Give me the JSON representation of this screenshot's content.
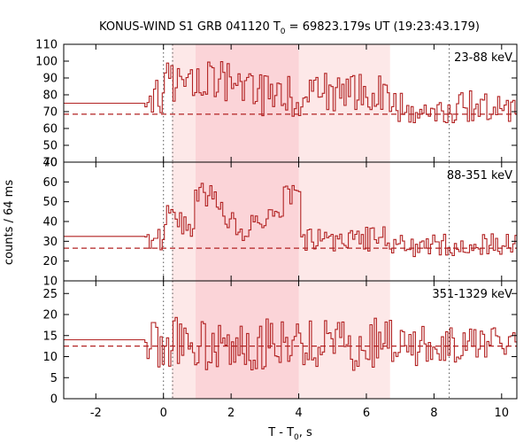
{
  "chart_data": {
    "type": "line",
    "title": {
      "prefix": "KONUS-WIND S1 GRB 041120 T",
      "sub": "0",
      "suffix": " = 69823.179s UT (19:23:43.179)"
    },
    "xlabel": {
      "prefix": "T - T",
      "sub": "0",
      "suffix": ", s"
    },
    "ylabel": "counts / 64 ms",
    "xlim": [
      -2.95,
      10.45
    ],
    "xticks": [
      -2,
      0,
      2,
      4,
      6,
      8,
      10
    ],
    "bin_width_s": 0.064,
    "shaded_intervals": [
      {
        "x0": 0.25,
        "x1": 6.7,
        "style": "light"
      },
      {
        "x0": 0.95,
        "x1": 4.0,
        "style": "dark"
      }
    ],
    "marker_lines_x": [
      0.0,
      0.27,
      8.45
    ],
    "line_color": "#b22222",
    "shade_light_color": "#fde8e8",
    "shade_dark_color": "#fbd4d8",
    "panels": [
      {
        "label": "23-88 keV",
        "ylim": [
          40,
          110
        ],
        "yticks": [
          40,
          50,
          60,
          70,
          80,
          90,
          100,
          110
        ],
        "background": 68.5,
        "pre_level": 75,
        "pre_end": -0.55,
        "mean_early": 80,
        "amp_early": 8,
        "mean_late": 73,
        "amp_late": 6,
        "range_clip": [
          51,
          102
        ]
      },
      {
        "label": "88-351 keV",
        "ylim": [
          10,
          70
        ],
        "yticks": [
          10,
          20,
          30,
          40,
          50,
          60,
          70
        ],
        "background": 26.5,
        "pre_level": 32.5,
        "pre_end": -0.55,
        "mean_early": 30,
        "amp_early": 4,
        "mean_late": 28,
        "amp_late": 4,
        "range_clip": [
          18,
          67
        ]
      },
      {
        "label": "351-1329 keV",
        "ylim": [
          0,
          28
        ],
        "yticks": [
          0,
          5,
          10,
          15,
          20,
          25
        ],
        "background": 12.5,
        "pre_level": 14,
        "pre_end": -0.55,
        "mean_early": 13,
        "amp_early": 4,
        "mean_late": 12.5,
        "amp_late": 3,
        "range_clip": [
          2,
          23
        ]
      }
    ]
  }
}
